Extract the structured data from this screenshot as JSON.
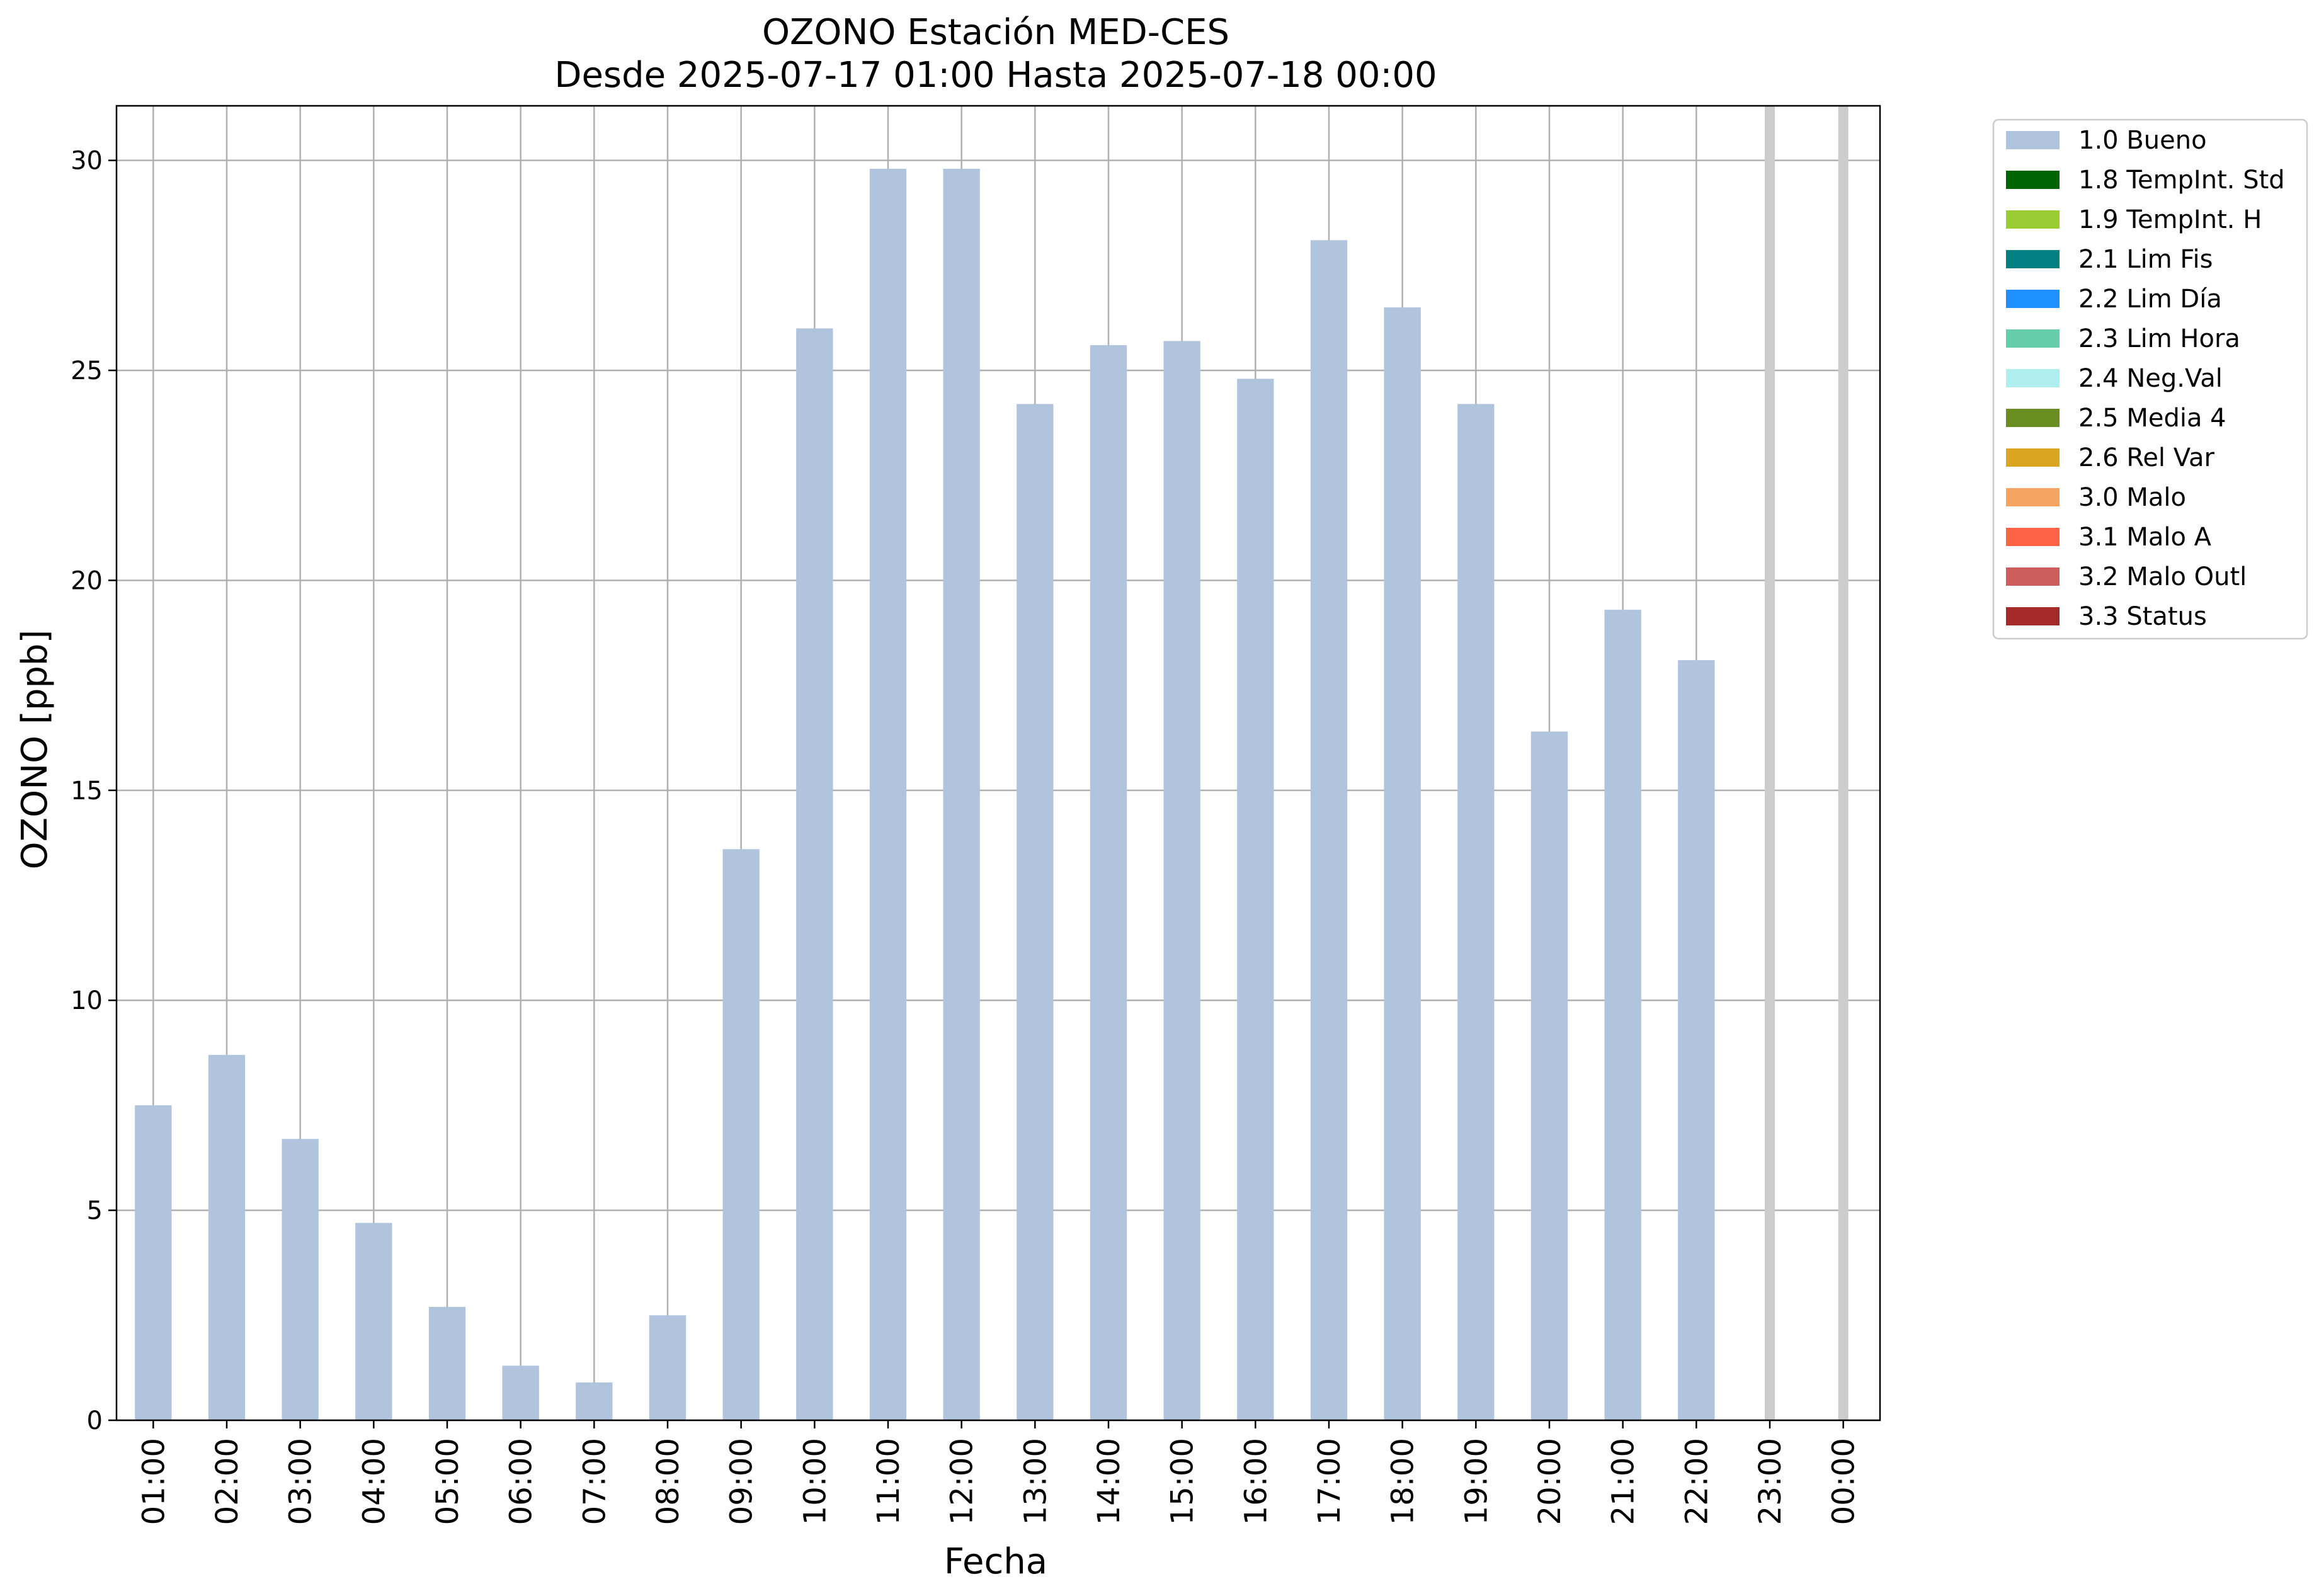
{
  "chart_data": {
    "type": "bar",
    "title": "OZONO Estación MED-CES",
    "subtitle": "Desde 2025-07-17 01:00 Hasta 2025-07-18 00:00",
    "xlabel": "Fecha",
    "ylabel": "OZONO [ppb]",
    "ylim": [
      0,
      31.3
    ],
    "yticks": [
      0,
      5,
      10,
      15,
      20,
      25,
      30
    ],
    "grid": true,
    "categories": [
      "01:00",
      "02:00",
      "03:00",
      "04:00",
      "05:00",
      "06:00",
      "07:00",
      "08:00",
      "09:00",
      "10:00",
      "11:00",
      "12:00",
      "13:00",
      "14:00",
      "15:00",
      "16:00",
      "17:00",
      "18:00",
      "19:00",
      "20:00",
      "21:00",
      "22:00",
      "23:00",
      "00:00"
    ],
    "series": [
      {
        "name": "1.0 Bueno",
        "color": "#b0c4de",
        "values": [
          7.5,
          8.7,
          6.7,
          4.7,
          2.7,
          1.3,
          0.9,
          2.5,
          13.6,
          26.0,
          29.8,
          29.8,
          24.2,
          25.6,
          25.7,
          24.8,
          28.1,
          26.5,
          24.2,
          16.4,
          19.3,
          18.1,
          null,
          null
        ]
      }
    ],
    "missing_categories": [
      "23:00",
      "00:00"
    ],
    "legend_placement": "outside-top-right",
    "legend": [
      {
        "label": "1.0 Bueno",
        "color": "#b0c4de"
      },
      {
        "label": "1.8 TempInt. Std",
        "color": "#006400"
      },
      {
        "label": "1.9 TempInt. H",
        "color": "#9acd32"
      },
      {
        "label": "2.1 Lim Fis",
        "color": "#008080"
      },
      {
        "label": "2.2 Lim Día",
        "color": "#1e90ff"
      },
      {
        "label": "2.3 Lim Hora",
        "color": "#66cdaa"
      },
      {
        "label": "2.4 Neg.Val",
        "color": "#afeeee"
      },
      {
        "label": "2.5 Media 4",
        "color": "#6b8e23"
      },
      {
        "label": "2.6 Rel Var",
        "color": "#daa520"
      },
      {
        "label": "3.0 Malo",
        "color": "#f4a460"
      },
      {
        "label": "3.1 Malo A",
        "color": "#ff6347"
      },
      {
        "label": "3.2 Malo Outl",
        "color": "#cd5c5c"
      },
      {
        "label": "3.3 Status",
        "color": "#a52a2a"
      }
    ]
  }
}
